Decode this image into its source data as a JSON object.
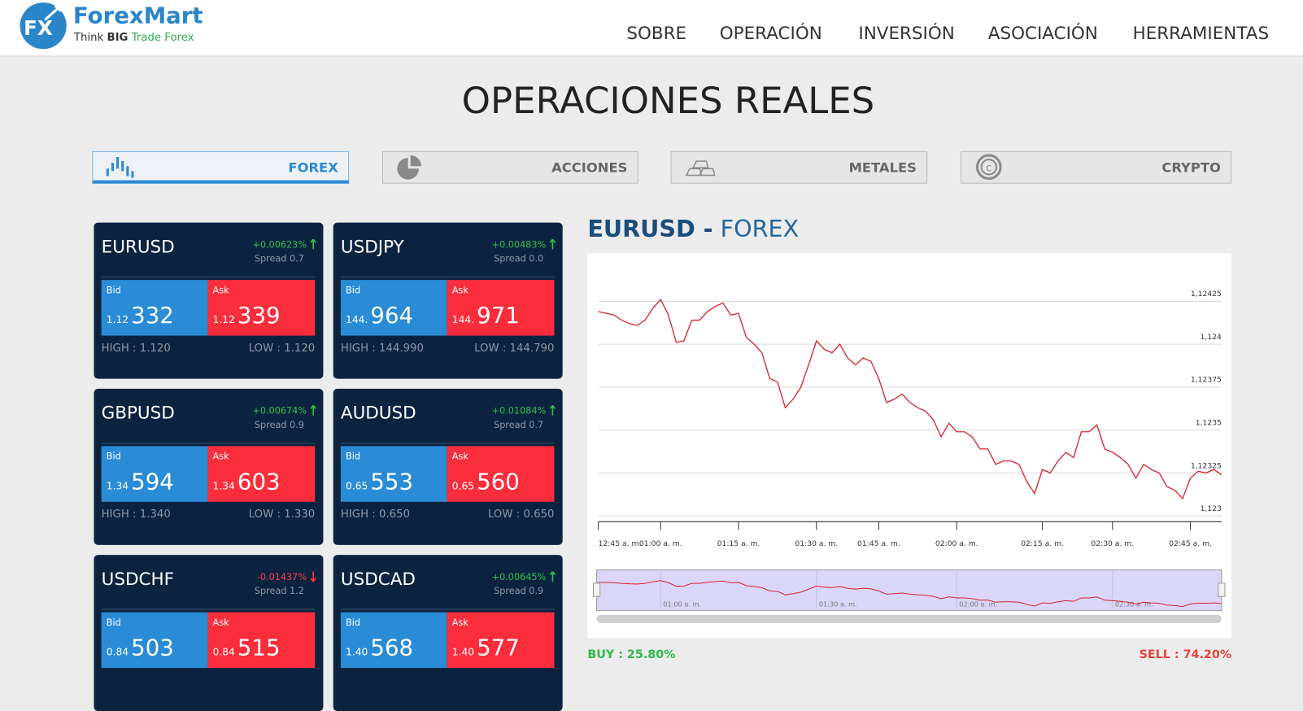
{
  "header": {
    "logo_mark": "FX",
    "brand": "ForexMart",
    "tagline": [
      "Think",
      "BIG",
      "Trade Forex"
    ]
  },
  "nav": [
    "SOBRE",
    "OPERACIÓN",
    "INVERSIÓN",
    "ASOCIACIÓN",
    "HERRAMIENTAS"
  ],
  "page_title": "OPERACIONES REALES",
  "tabs": [
    {
      "label": "FOREX",
      "active": true
    },
    {
      "label": "ACCIONES",
      "active": false
    },
    {
      "label": "METALES",
      "active": false
    },
    {
      "label": "CRYPTO",
      "active": false
    }
  ],
  "cards": {
    "bid_label": "Bid",
    "ask_label": "Ask",
    "items": [
      {
        "pair": "EURUSD",
        "change": "+0.00623%",
        "trend": "up",
        "spread": "Spread 0.7",
        "bid_prefix": "1.12",
        "bid": "332",
        "ask_prefix": "1.12",
        "ask": "339",
        "high": "HIGH : 1.120",
        "low": "LOW : 1.120"
      },
      {
        "pair": "USDJPY",
        "change": "+0.00483%",
        "trend": "up",
        "spread": "Spread 0.0",
        "bid_prefix": "144.",
        "bid": "964",
        "ask_prefix": "144.",
        "ask": "971",
        "high": "HIGH : 144.990",
        "low": "LOW : 144.790"
      },
      {
        "pair": "GBPUSD",
        "change": "+0.00674%",
        "trend": "up",
        "spread": "Spread 0.9",
        "bid_prefix": "1.34",
        "bid": "594",
        "ask_prefix": "1.34",
        "ask": "603",
        "high": "HIGH : 1.340",
        "low": "LOW : 1.330"
      },
      {
        "pair": "AUDUSD",
        "change": "+0.01084%",
        "trend": "up",
        "spread": "Spread 0.7",
        "bid_prefix": "0.65",
        "bid": "553",
        "ask_prefix": "0.65",
        "ask": "560",
        "high": "HIGH : 0.650",
        "low": "LOW : 0.650"
      },
      {
        "pair": "USDCHF",
        "change": "-0.01437%",
        "trend": "down",
        "spread": "Spread 1.2",
        "bid_prefix": "0.84",
        "bid": "503",
        "ask_prefix": "0.84",
        "ask": "515",
        "high": null,
        "low": null
      },
      {
        "pair": "USDCAD",
        "change": "+0.00645%",
        "trend": "up",
        "spread": "Spread 0.9",
        "bid_prefix": "1.40",
        "bid": "568",
        "ask_prefix": "1.40",
        "ask": "577",
        "high": null,
        "low": null
      }
    ]
  },
  "chart_section": {
    "symbol": "EURUSD -",
    "market": "FOREX",
    "buy": "BUY : 25.80%",
    "sell": "SELL : 74.20%"
  },
  "chart_data": {
    "type": "line",
    "grid": true,
    "series": [
      {
        "color": "#d9232d",
        "values": [
          1.12419,
          1.12418,
          1.12417,
          1.12414,
          1.12412,
          1.12411,
          1.12414,
          1.12421,
          1.12426,
          1.12417,
          1.12401,
          1.12402,
          1.12414,
          1.12414,
          1.12419,
          1.12422,
          1.12424,
          1.12417,
          1.12418,
          1.12404,
          1.124,
          1.12395,
          1.1238,
          1.12378,
          1.12363,
          1.12368,
          1.12375,
          1.12388,
          1.12402,
          1.12397,
          1.12395,
          1.124,
          1.12392,
          1.12388,
          1.12392,
          1.1239,
          1.1238,
          1.12366,
          1.12368,
          1.12371,
          1.12366,
          1.12363,
          1.12361,
          1.12356,
          1.12346,
          1.12354,
          1.12349,
          1.12349,
          1.12346,
          1.12339,
          1.12339,
          1.1233,
          1.12332,
          1.12332,
          1.1233,
          1.1232,
          1.12313,
          1.12327,
          1.12325,
          1.12332,
          1.12337,
          1.12334,
          1.12349,
          1.12349,
          1.12353,
          1.12339,
          1.12337,
          1.12334,
          1.1233,
          1.12322,
          1.1233,
          1.12327,
          1.12325,
          1.12317,
          1.12315,
          1.1231,
          1.12322,
          1.12326,
          1.12325,
          1.12327,
          1.12324
        ]
      }
    ],
    "xlim": [
      0,
      80
    ],
    "xticks": [
      {
        "value": 0,
        "label": "12:45 a. m."
      },
      {
        "value": 8,
        "label": "01:00 a. m."
      },
      {
        "value": 18,
        "label": "01:15 a. m."
      },
      {
        "value": 28,
        "label": "01:30 a. m."
      },
      {
        "value": 36,
        "label": "01:45 a. m."
      },
      {
        "value": 46,
        "label": "02:00 a. m."
      },
      {
        "value": 57,
        "label": "02:15 a. m."
      },
      {
        "value": 66,
        "label": "02:30 a. m."
      },
      {
        "value": 76,
        "label": "02:45 a. m."
      }
    ],
    "ylim": [
      1.123,
      1.1245
    ],
    "yticks": [
      {
        "value": 1.123,
        "label": "1,123"
      },
      {
        "value": 1.12325,
        "label": "1,12325"
      },
      {
        "value": 1.1235,
        "label": "1,1235"
      },
      {
        "value": 1.12375,
        "label": "1,12375"
      },
      {
        "value": 1.124,
        "label": "1,124"
      },
      {
        "value": 1.12425,
        "label": "1,12425"
      }
    ],
    "navigator_ticks": [
      {
        "value": 8,
        "label": "01:00 a. m."
      },
      {
        "value": 28,
        "label": "01:30 a. m."
      },
      {
        "value": 46,
        "label": "02:00 a. m."
      },
      {
        "value": 66,
        "label": "02:30 a. m."
      }
    ]
  }
}
